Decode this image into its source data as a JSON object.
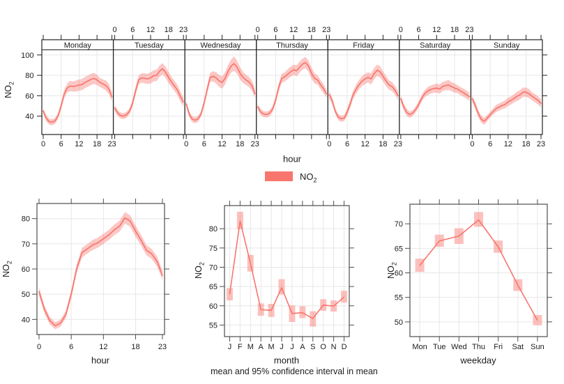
{
  "colors": {
    "accent": "#f8766d",
    "ribbon": "rgba(248,118,109,0.40)",
    "ci_box": "rgba(248,118,109,0.45)",
    "grid": "#e7e7e7",
    "frame_dark": "#222222",
    "frame_gray": "#4d4d4d",
    "text": "#1b1b1b",
    "strip_fill": "#ffffff"
  },
  "labels": {
    "pollutant_base": "NO",
    "pollutant_sub": "2",
    "footer": "mean and 95% confidence interval in mean"
  },
  "chart_data": [
    {
      "id": "hour-by-weekday",
      "type": "line",
      "xlabel": "hour",
      "ylabel": "NO2",
      "xticks": [
        0,
        6,
        12,
        18,
        23
      ],
      "yticks": [
        40,
        60,
        80,
        100
      ],
      "ylim": [
        22,
        105
      ],
      "top_label_panels": [
        "Tuesday",
        "Thursday",
        "Saturday"
      ],
      "bottom_label_panels": [
        "Monday",
        "Wednesday",
        "Friday",
        "Sunday"
      ],
      "series": [
        {
          "name": "Monday",
          "values": [
            45,
            38,
            34.5,
            34,
            35.5,
            40.5,
            50,
            61.5,
            67.5,
            69.5,
            69,
            69.5,
            70.5,
            71,
            73,
            74.5,
            76,
            77,
            75.5,
            73,
            71.5,
            70,
            66.5,
            59
          ],
          "ci": [
            3,
            3,
            3,
            3,
            3,
            3,
            3.5,
            4,
            4.5,
            5,
            5,
            5.5,
            5.5,
            5.5,
            5.5,
            5.5,
            5.5,
            5.5,
            5,
            4.5,
            4.5,
            5,
            5,
            4.5
          ]
        },
        {
          "name": "Tuesday",
          "values": [
            48,
            43,
            40.5,
            40,
            41.5,
            45,
            53,
            65,
            75.5,
            77.5,
            77,
            76.5,
            77.5,
            79.5,
            80,
            84,
            86.5,
            83,
            78,
            73.5,
            69.5,
            65.5,
            59,
            54
          ],
          "ci": [
            3,
            3,
            3,
            3,
            3,
            3,
            3.5,
            4,
            4.5,
            4.5,
            5,
            5,
            5.5,
            5.5,
            5.5,
            5.5,
            5.5,
            5.5,
            5.5,
            5,
            5,
            5,
            5,
            4.5
          ]
        },
        {
          "name": "Wednesday",
          "values": [
            52,
            42,
            37,
            36,
            37.5,
            42.5,
            53,
            66,
            78,
            79,
            77.5,
            74.5,
            73,
            77,
            84,
            89,
            91.5,
            88,
            82,
            78,
            75.5,
            73.5,
            70,
            62
          ],
          "ci": [
            3.5,
            3,
            3,
            3,
            3,
            3,
            3.5,
            4,
            4.5,
            5,
            5.5,
            6,
            6,
            6,
            6,
            6.5,
            7,
            6.5,
            6,
            5.5,
            5,
            5,
            5,
            4.5
          ]
        },
        {
          "name": "Thursday",
          "values": [
            49,
            44,
            42,
            41.5,
            43,
            47,
            56,
            68,
            77,
            78.5,
            81,
            83.5,
            85.5,
            84.5,
            88,
            91,
            92.5,
            89,
            82,
            77,
            75.5,
            71,
            67,
            62
          ],
          "ci": [
            3,
            3,
            3,
            3,
            3,
            3,
            3.5,
            4,
            4.5,
            4.5,
            5,
            5,
            5,
            5.5,
            5.5,
            5.5,
            5.5,
            5.5,
            5.5,
            5,
            4.5,
            4.5,
            4.5,
            4
          ]
        },
        {
          "name": "Friday",
          "values": [
            61,
            55,
            45,
            39,
            37.5,
            38,
            44,
            52,
            61,
            66.5,
            71,
            74.5,
            76.5,
            78,
            76.5,
            81.5,
            85,
            83.5,
            79,
            74.5,
            70.5,
            69,
            65.5,
            60
          ],
          "ci": [
            4,
            3.5,
            3,
            3,
            3,
            3,
            3.5,
            4,
            4,
            4.5,
            4.5,
            5,
            5,
            5,
            5.5,
            5.5,
            5.5,
            5.5,
            5,
            5,
            4.5,
            4.5,
            4.5,
            4.5
          ]
        },
        {
          "name": "Saturday",
          "values": [
            57,
            49,
            43.5,
            41.5,
            43,
            46.5,
            51.5,
            57.5,
            62,
            64.5,
            66,
            67,
            67.5,
            66.5,
            69,
            70,
            70.5,
            69,
            67.5,
            66.5,
            64.5,
            63,
            61,
            59
          ],
          "ci": [
            3.5,
            3.5,
            3.5,
            3,
            3,
            3,
            3,
            3.5,
            3.5,
            4,
            4,
            4,
            4.5,
            4.5,
            4.5,
            4.5,
            5,
            4.5,
            4.5,
            4,
            4,
            4,
            4,
            4
          ]
        },
        {
          "name": "Sunday",
          "values": [
            57,
            50.5,
            42.5,
            37,
            35,
            38,
            41.5,
            44.5,
            47.5,
            49,
            50.5,
            51.5,
            54,
            55.5,
            57.5,
            59.5,
            61,
            63.5,
            63.5,
            62,
            59.5,
            57.5,
            55.5,
            52.5
          ],
          "ci": [
            3.5,
            3.5,
            3.5,
            3.5,
            3.5,
            3,
            3,
            3,
            3.5,
            3.5,
            3.5,
            4,
            4,
            4,
            4,
            4.5,
            4.5,
            4.5,
            4.5,
            4.5,
            4,
            4,
            4,
            4
          ]
        }
      ]
    },
    {
      "id": "diurnal-hour",
      "type": "line",
      "xlabel": "hour",
      "ylabel": "NO2",
      "xticks": [
        0,
        6,
        12,
        18,
        23
      ],
      "yticks": [
        40,
        50,
        60,
        70,
        80
      ],
      "ylim": [
        34,
        86
      ],
      "values": [
        51,
        44,
        39.5,
        37.5,
        38.5,
        42,
        50,
        60,
        66.5,
        68,
        69.5,
        70.5,
        72,
        73.5,
        75.5,
        77,
        80.3,
        79,
        75,
        71.5,
        67.5,
        66,
        63,
        57.5
      ],
      "ci": [
        1.7,
        1.5,
        1.5,
        1.4,
        1.4,
        1.5,
        1.6,
        1.8,
        1.9,
        1.9,
        2,
        2,
        2,
        2,
        2.1,
        2.2,
        2.3,
        2.3,
        2.2,
        2.1,
        2,
        2,
        2,
        1.9
      ]
    },
    {
      "id": "month",
      "type": "ci-line",
      "xlabel": "month",
      "ylabel": "NO2",
      "categories": [
        "J",
        "F",
        "M",
        "A",
        "M",
        "J",
        "J",
        "A",
        "S",
        "O",
        "N",
        "D"
      ],
      "yticks": [
        55,
        60,
        65,
        70,
        75,
        80
      ],
      "ylim": [
        52,
        86
      ],
      "values": [
        63,
        82,
        71,
        59,
        58.8,
        64.7,
        58,
        58.2,
        56.7,
        60.2,
        59.9,
        62.3
      ],
      "lo": [
        61.4,
        79.9,
        68.9,
        57.4,
        57.1,
        62.9,
        55.8,
        56.8,
        54.6,
        58.7,
        58.5,
        60.8
      ],
      "hi": [
        64.6,
        84.4,
        73.2,
        60.6,
        60.5,
        66.9,
        60.1,
        59.9,
        58.6,
        61.7,
        61.4,
        63.9
      ]
    },
    {
      "id": "weekday",
      "type": "ci-line",
      "xlabel": "weekday",
      "ylabel": "NO2",
      "categories": [
        "Mon",
        "Tue",
        "Wed",
        "Thu",
        "Fri",
        "Sat",
        "Sun"
      ],
      "yticks": [
        50,
        55,
        60,
        65,
        70
      ],
      "ylim": [
        47,
        74
      ],
      "values": [
        61.5,
        66.5,
        67.5,
        70.8,
        65.3,
        57.5,
        50.3
      ],
      "lo": [
        60.2,
        65.3,
        65.9,
        69.4,
        64.1,
        56.3,
        49.3
      ],
      "hi": [
        62.9,
        67.8,
        69.1,
        72.4,
        66.6,
        58.7,
        51.4
      ]
    }
  ]
}
